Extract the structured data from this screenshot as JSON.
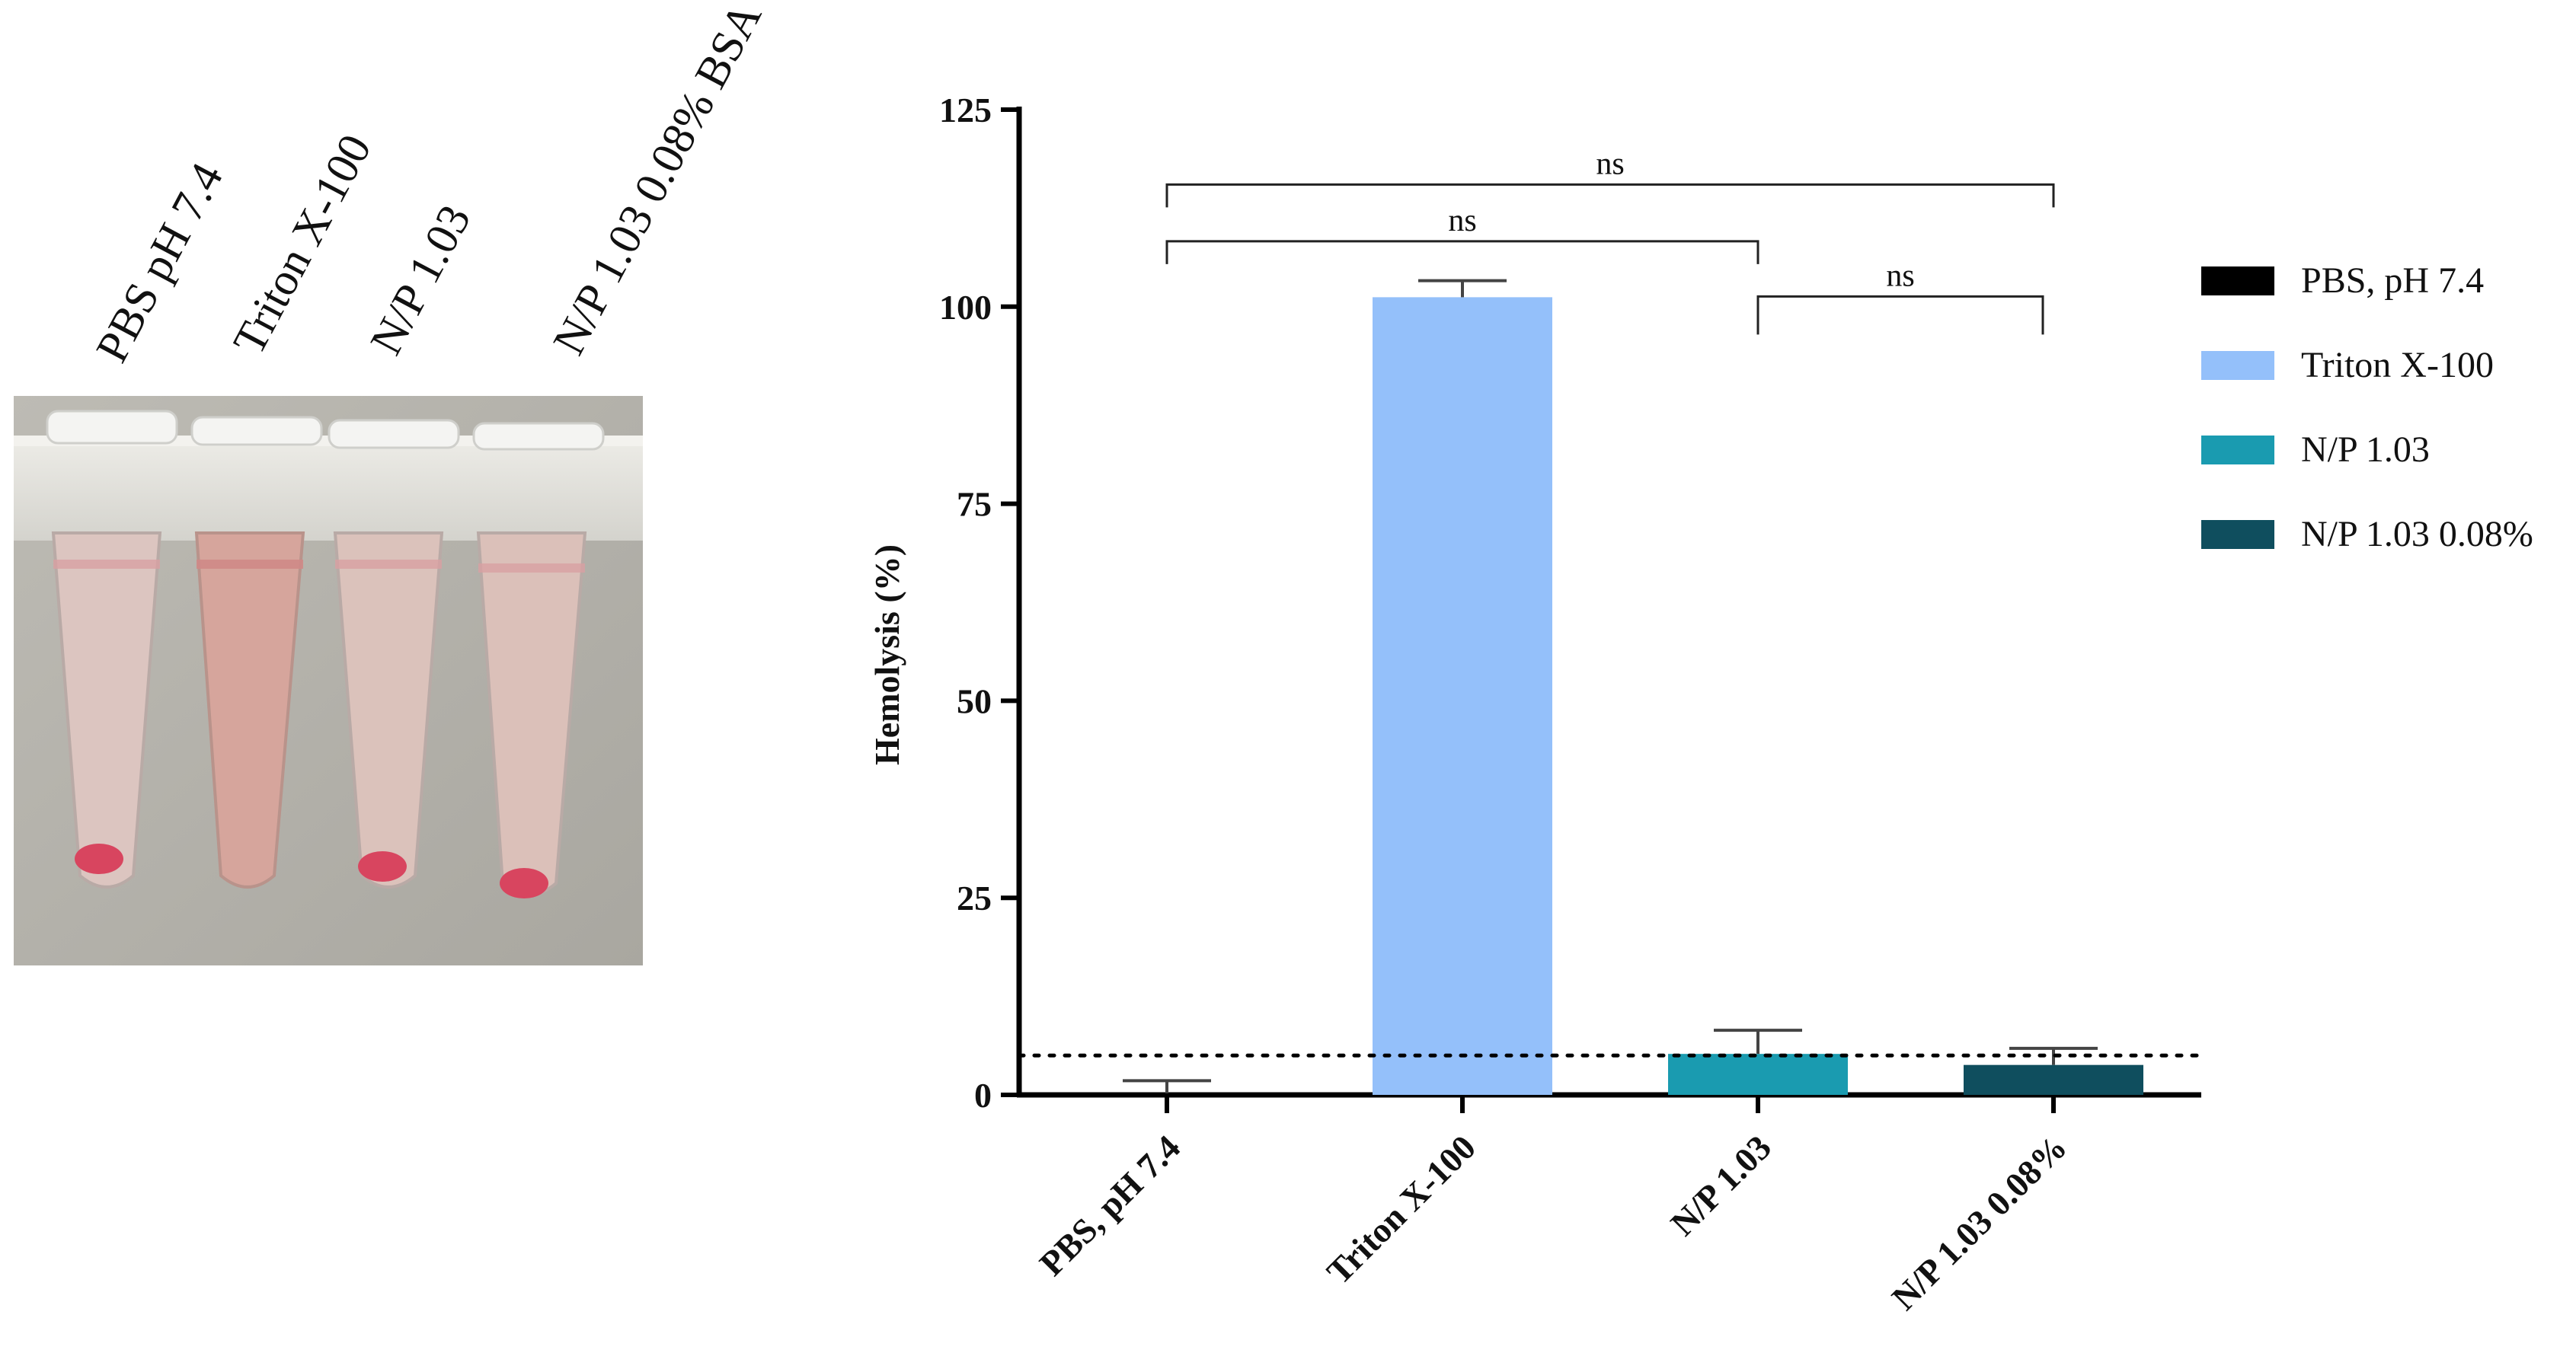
{
  "photo": {
    "tube_labels": [
      "PBS pH 7.4",
      "Triton X-100",
      "N/P 1.03",
      "N/P 1.03 0.08% BSA"
    ],
    "colors": {
      "background": "#b4b2ab",
      "rack": "#e3e2dd",
      "clear_tube": "#d9c0bb",
      "lysed_tube": "#d7a29a",
      "pellet": "#d8455f"
    }
  },
  "chart_data": {
    "type": "bar",
    "categories": [
      "PBS, pH 7.4",
      "Triton X-100",
      "N/P 1.03",
      "N/P 1.03 0.08%"
    ],
    "values": [
      0.2,
      101.2,
      5.2,
      3.8
    ],
    "error": [
      1.6,
      2.1,
      3.0,
      2.1
    ],
    "colors": [
      "#000000",
      "#94c0fa",
      "#1a9bb0",
      "#0f4e5e"
    ],
    "ylabel": "Hemolysis (%)",
    "ylim": [
      0,
      125
    ],
    "yticks": [
      0,
      25,
      50,
      75,
      100,
      125
    ],
    "threshold_line": 5,
    "grid": false,
    "legend": {
      "placement": "right",
      "entries": [
        "PBS, pH 7.4",
        "Triton X-100",
        "N/P 1.03",
        "N/P 1.03 0.08%"
      ]
    },
    "significance": [
      {
        "from": 0,
        "to": 3,
        "label": "ns"
      },
      {
        "from": 0,
        "to": 2,
        "label": "ns"
      },
      {
        "from": 2,
        "to": 3,
        "label": "ns"
      }
    ]
  }
}
